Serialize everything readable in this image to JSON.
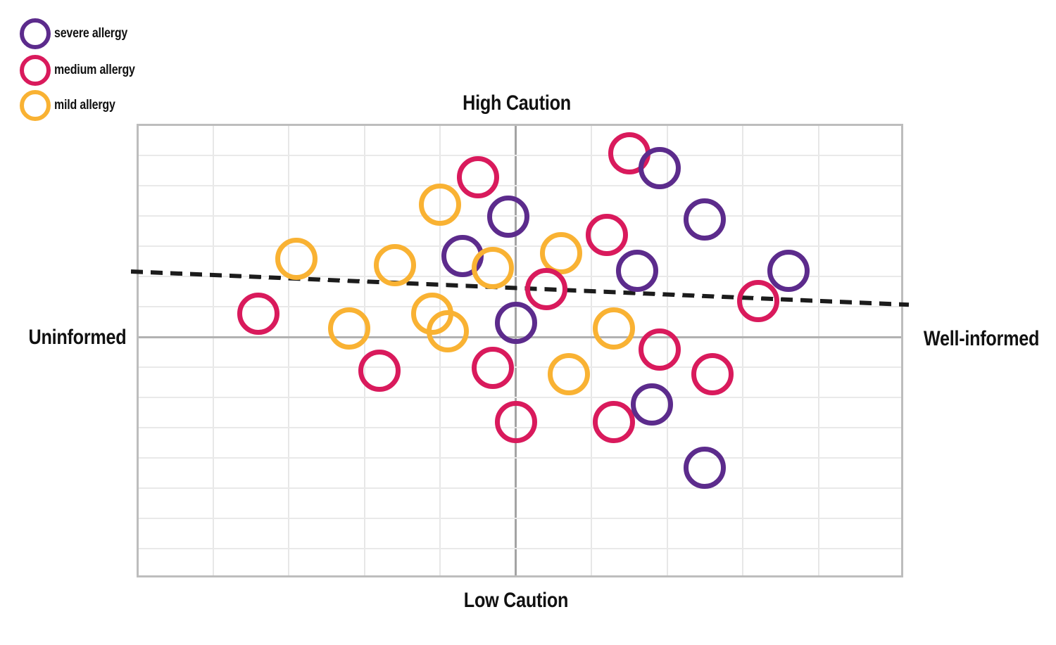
{
  "page": {
    "background": "#ffffff"
  },
  "colors": {
    "severe": "#5c2b8c",
    "medium": "#d91a5c",
    "mild": "#f9b233",
    "trend_line": "#1c1c1c",
    "grid_light": "#e7e7e7",
    "axis_gray": "#a9a9a9",
    "frame_gray": "#bdbdbd"
  },
  "legend": {
    "items": [
      {
        "key": "severe",
        "label": "severe allergy",
        "color": "#5c2b8c"
      },
      {
        "key": "medium",
        "label": "medium allergy",
        "color": "#d91a5c"
      },
      {
        "key": "mild",
        "label": "mild allergy",
        "color": "#f9b233"
      }
    ]
  },
  "chart_data": {
    "type": "scatter",
    "title": "",
    "axis_labels": {
      "top": "High Caution",
      "bottom": "Low Caution",
      "left": "Uninformed",
      "right": "Well-informed"
    },
    "x_axis": {
      "dimension": "informedness",
      "min": -5,
      "max": 5,
      "tick_labels": [],
      "units": "grid cells from center"
    },
    "y_axis": {
      "dimension": "caution",
      "min": -8,
      "max": 7,
      "tick_labels": [],
      "units": "grid cells from center"
    },
    "grid": {
      "columns": 10,
      "rows": 15,
      "visible": true,
      "quadrant_axes": true
    },
    "legend_position": "top-left",
    "marker_style": "open-circle",
    "series_meta": [
      {
        "key": "severe",
        "name": "severe allergy",
        "color": "#5c2b8c",
        "count": 9
      },
      {
        "key": "medium",
        "name": "medium allergy",
        "color": "#d91a5c",
        "count": 12
      },
      {
        "key": "mild",
        "name": "mild allergy",
        "color": "#f9b233",
        "count": 10
      }
    ],
    "points": [
      {
        "series": "medium",
        "x": 1.5,
        "y": 6.1
      },
      {
        "series": "medium",
        "x": -0.5,
        "y": 5.3
      },
      {
        "series": "medium",
        "x": 1.2,
        "y": 3.4
      },
      {
        "series": "medium",
        "x": -3.4,
        "y": 0.8
      },
      {
        "series": "medium",
        "x": 3.2,
        "y": 1.2
      },
      {
        "series": "medium",
        "x": -1.8,
        "y": -1.1
      },
      {
        "series": "medium",
        "x": -0.3,
        "y": -1.0
      },
      {
        "series": "medium",
        "x": 0.0,
        "y": -2.8
      },
      {
        "series": "medium",
        "x": 1.3,
        "y": -2.8
      },
      {
        "series": "medium",
        "x": 1.9,
        "y": -0.4
      },
      {
        "series": "medium",
        "x": 2.6,
        "y": -1.2
      },
      {
        "series": "severe",
        "x": 1.9,
        "y": 5.6
      },
      {
        "series": "severe",
        "x": 2.5,
        "y": 3.9
      },
      {
        "series": "severe",
        "x": -0.1,
        "y": 4.0
      },
      {
        "series": "severe",
        "x": -0.7,
        "y": 2.7
      },
      {
        "series": "severe",
        "x": 1.6,
        "y": 2.2
      },
      {
        "series": "severe",
        "x": 3.6,
        "y": 2.2
      },
      {
        "series": "severe",
        "x": 0.0,
        "y": 0.5
      },
      {
        "series": "severe",
        "x": 1.8,
        "y": -2.2
      },
      {
        "series": "severe",
        "x": 2.5,
        "y": -4.3
      },
      {
        "series": "mild",
        "x": -1.0,
        "y": 4.4
      },
      {
        "series": "mild",
        "x": -2.9,
        "y": 2.6
      },
      {
        "series": "mild",
        "x": -1.6,
        "y": 2.4
      },
      {
        "series": "mild",
        "x": -0.3,
        "y": 2.3
      },
      {
        "series": "mild",
        "x": 0.6,
        "y": 2.8
      },
      {
        "series": "mild",
        "x": -1.1,
        "y": 0.8
      },
      {
        "series": "mild",
        "x": -0.9,
        "y": 0.2
      },
      {
        "series": "mild",
        "x": -2.2,
        "y": 0.3
      },
      {
        "series": "mild",
        "x": 1.3,
        "y": 0.3
      },
      {
        "series": "mild",
        "x": 0.7,
        "y": -1.2
      },
      {
        "series": "medium",
        "x": 0.4,
        "y": 1.6
      }
    ],
    "trend_line": {
      "style": "dashed",
      "color": "#1c1c1c",
      "from": {
        "x": -5.08,
        "y": 2.19
      },
      "to": {
        "x": 5.2,
        "y": 1.09
      },
      "slope_direction": "slightly downward left-to-right"
    }
  }
}
